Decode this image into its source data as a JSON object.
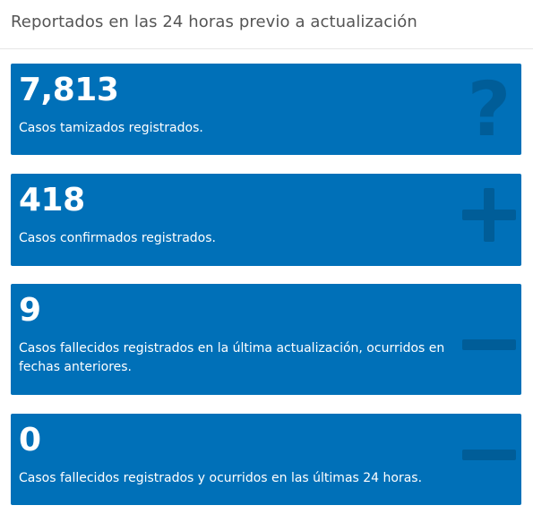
{
  "header": {
    "title": "Reportados en las 24 horas previo a actualización"
  },
  "colors": {
    "card_background": "#0070b8",
    "icon_color": "#005d98",
    "header_text": "#555555"
  },
  "cards": [
    {
      "value": "7,813",
      "description": "Casos tamizados registrados.",
      "icon": "question-mark-icon"
    },
    {
      "value": "418",
      "description": "Casos confirmados registrados.",
      "icon": "plus-icon"
    },
    {
      "value": "9",
      "description": "Casos fallecidos registrados en la última actualización, ocurridos en fechas anteriores.",
      "icon": "minus-icon"
    },
    {
      "value": "0",
      "description": "Casos fallecidos registrados y ocurridos en las últimas 24 horas.",
      "icon": "minus-icon"
    }
  ]
}
